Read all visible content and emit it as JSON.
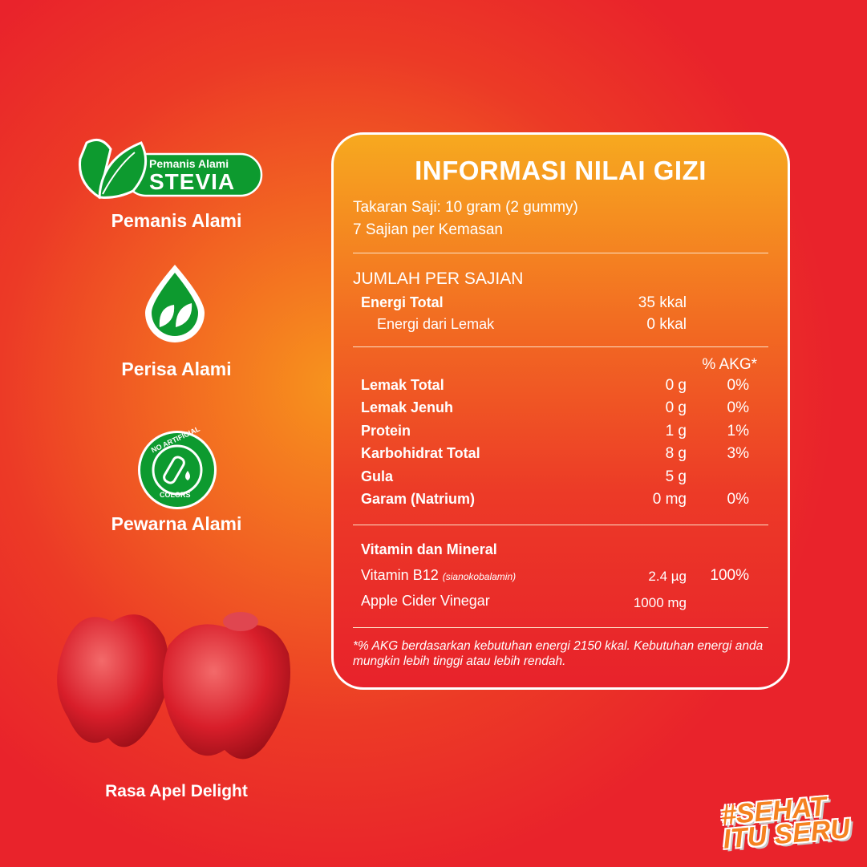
{
  "features": [
    {
      "badge_top": "Pemanis Alami",
      "badge_main": "STEVIA",
      "label": "Pemanis Alami",
      "icon": "stevia-leaf-icon"
    },
    {
      "label": "Perisa Alami",
      "icon": "leaf-drop-icon"
    },
    {
      "badge_text_top": "NO ARTIFICIAL",
      "badge_text_bottom": "COLORS",
      "label": "Pewarna Alami",
      "icon": "test-tube-icon"
    }
  ],
  "product": {
    "flavor": "Rasa Apel Delight",
    "image": "apple-gummies"
  },
  "hashtag": {
    "line1": "#SEHAT",
    "line2": "ITU SERU"
  },
  "nutrition": {
    "title": "INFORMASI NILAI GIZI",
    "serving_size": "Takaran Saji: 10 gram (2 gummy)",
    "servings": "7 Sajian per Kemasan",
    "per_serving": "JUMLAH PER SAJIAN",
    "energy": [
      {
        "label": "Energi Total",
        "value": "35 kkal"
      },
      {
        "label": "Energi dari Lemak",
        "value": "0 kkal"
      }
    ],
    "akg_header": "% AKG*",
    "rows": [
      {
        "label": "Lemak Total",
        "value": "0 g",
        "akg": "0%"
      },
      {
        "label": "Lemak Jenuh",
        "value": "0 g",
        "akg": "0%"
      },
      {
        "label": "Protein",
        "value": "1 g",
        "akg": "1%"
      },
      {
        "label": "Karbohidrat Total",
        "value": "8 g",
        "akg": "3%"
      },
      {
        "label": "Gula",
        "value": "5 g",
        "akg": ""
      },
      {
        "label": "Garam (Natrium)",
        "value": "0 mg",
        "akg": "0%"
      }
    ],
    "vitamins_title": "Vitamin dan Mineral",
    "vitamins": [
      {
        "label": "Vitamin B12",
        "sub": "(sianokobalamin)",
        "value": "2.4 µg",
        "akg": "100%"
      },
      {
        "label": "Apple Cider Vinegar",
        "sub": "",
        "value": "1000 mg",
        "akg": ""
      }
    ],
    "footnote": "*% AKG berdasarkan kebutuhan energi 2150 kkal. Kebutuhan energi anda mungkin lebih tinggi atau lebih rendah."
  },
  "colors": {
    "background": "#e9232b",
    "glow": "#f7941d",
    "badge_green": "#0d9a2f",
    "hashtag": "#f58220"
  }
}
